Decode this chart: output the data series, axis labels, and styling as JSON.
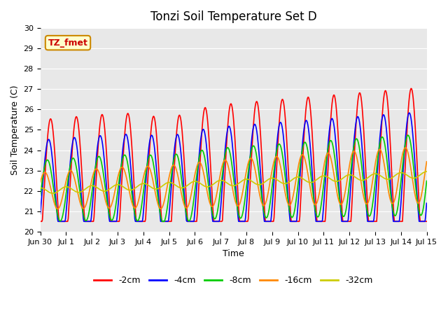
{
  "title": "Tonzi Soil Temperature Set D",
  "xlabel": "Time",
  "ylabel": "Soil Temperature (C)",
  "ylim": [
    20.0,
    30.0
  ],
  "yticks": [
    20.0,
    21.0,
    22.0,
    23.0,
    24.0,
    25.0,
    26.0,
    27.0,
    28.0,
    29.0,
    30.0
  ],
  "xtick_labels": [
    "Jun 30",
    "Jul 1",
    "Jul 2",
    "Jul 3",
    "Jul 4",
    "Jul 5",
    "Jul 6",
    "Jul 7",
    "Jul 8",
    "Jul 9",
    "Jul 10",
    "Jul 11",
    "Jul 12",
    "Jul 13",
    "Jul 14",
    "Jul 15"
  ],
  "series_colors": [
    "#ff0000",
    "#0000ff",
    "#00cc00",
    "#ff8800",
    "#cccc00"
  ],
  "series_labels": [
    "-2cm",
    "-4cm",
    "-8cm",
    "-16cm",
    "-32cm"
  ],
  "annotation_text": "TZ_fmet",
  "annotation_bg": "#ffffcc",
  "annotation_border": "#cc8800",
  "bg_color": "#e8e8e8",
  "line_width": 1.2,
  "n_points_per_day": 48,
  "n_days": 15,
  "base_temp": 22.0
}
